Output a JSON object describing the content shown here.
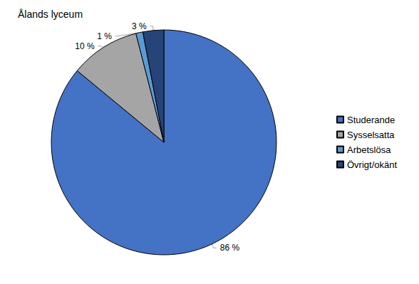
{
  "chart_data": {
    "type": "pie",
    "title": "Ålands lyceum",
    "categories": [
      "Studerande",
      "Sysselsatta",
      "Arbetslösa",
      "Övrigt/okänt"
    ],
    "values": [
      86,
      10,
      1,
      3
    ],
    "value_labels": [
      "86 %",
      "10 %",
      "1 %",
      "3 %"
    ],
    "colors": [
      "#4472c4",
      "#a5a5a5",
      "#5b9bd5",
      "#264478"
    ],
    "data_labels": true,
    "legend": "right"
  }
}
